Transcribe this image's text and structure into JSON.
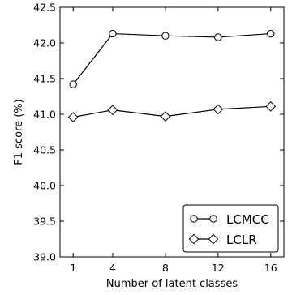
{
  "chart_data": {
    "type": "line",
    "title": "",
    "xlabel": "Number of latent classes",
    "ylabel": "F1 score (%)",
    "x": [
      1,
      4,
      8,
      12,
      16
    ],
    "x_tick_labels": [
      "1",
      "4",
      "8",
      "12",
      "16"
    ],
    "ylim": [
      39.0,
      42.5
    ],
    "y_ticks": [
      39.0,
      39.5,
      40.0,
      40.5,
      41.0,
      41.5,
      42.0,
      42.5
    ],
    "y_tick_labels": [
      "39.0",
      "39.5",
      "40.0",
      "40.5",
      "41.0",
      "41.5",
      "42.0",
      "42.5"
    ],
    "grid": false,
    "legend_position": "bottom-right",
    "series": [
      {
        "name": "LCMCC",
        "marker": "circle",
        "values": [
          41.42,
          42.13,
          42.1,
          42.08,
          42.13
        ]
      },
      {
        "name": "LCLR",
        "marker": "diamond",
        "values": [
          40.96,
          41.06,
          40.97,
          41.07,
          41.11
        ]
      }
    ],
    "colors": {
      "line": "#000000",
      "marker_fill": "#ffffff",
      "background": "#ffffff"
    }
  }
}
